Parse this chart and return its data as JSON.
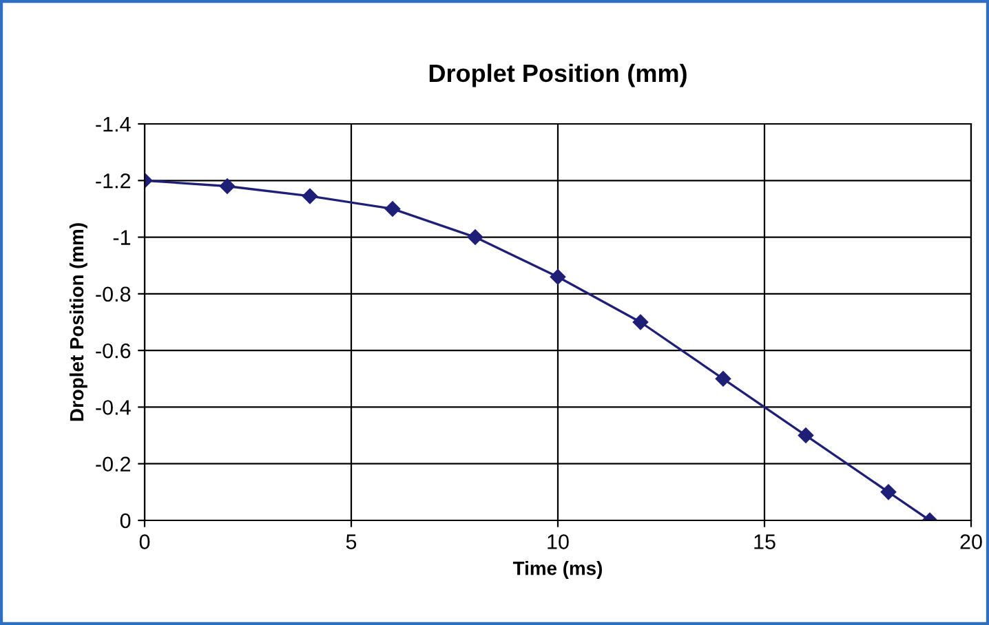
{
  "chart_data": {
    "type": "line",
    "title": "Droplet Position (mm)",
    "xlabel": "Time (ms)",
    "ylabel": "Droplet Position (mm)",
    "x": [
      0,
      2,
      4,
      6,
      8,
      10,
      12,
      14,
      16,
      18,
      19
    ],
    "series": [
      {
        "color": "#1f1f78",
        "values": [
          -1.2,
          -1.18,
          -1.145,
          -1.1,
          -1.0,
          -0.86,
          -0.7,
          -0.5,
          -0.3,
          -0.1,
          0
        ]
      }
    ],
    "xlim": [
      0,
      20
    ],
    "xticks": [
      0,
      5,
      10,
      15,
      20
    ],
    "ylim": [
      0,
      -1.4
    ],
    "yticks": [
      0,
      -0.2,
      -0.4,
      -0.6,
      -0.8,
      -1,
      -1.2,
      -1.4
    ],
    "grid": true,
    "marker": "diamond",
    "line_style": "solid",
    "legend": false
  }
}
